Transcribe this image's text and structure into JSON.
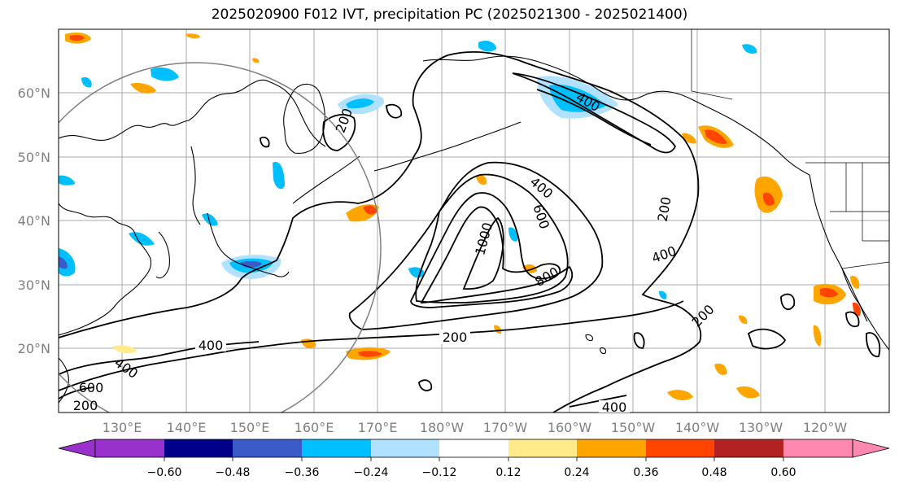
{
  "title": "2025020900 F012 IVT, precipitation PC (2025021300 - 2025021400)",
  "lat_labels": [
    "60°N",
    "50°N",
    "40°N",
    "30°N",
    "20°N"
  ],
  "lon_labels": [
    "130°E",
    "140°E",
    "150°E",
    "160°E",
    "170°E",
    "180°W",
    "170°W",
    "160°W",
    "150°W",
    "140°W",
    "130°W",
    "120°W"
  ],
  "contour_labels": [
    "200",
    "400",
    "600",
    "1000",
    "800",
    "400",
    "200",
    "200",
    "400",
    "400",
    "200",
    "400",
    "600",
    "200",
    "400"
  ],
  "colorbar": {
    "colors": [
      "#9932cc",
      "#00008b",
      "#3a5bc8",
      "#00bfff",
      "#b0e2ff",
      "#ffffff",
      "#ffeb8a",
      "#ffa500",
      "#ff4500",
      "#b22222",
      "#ff88b0"
    ],
    "ticks": [
      "−0.60",
      "−0.48",
      "−0.36",
      "−0.24",
      "−0.12",
      "0.12",
      "0.24",
      "0.36",
      "0.48",
      "0.60"
    ]
  },
  "colors": {
    "grid": "#a9a9a9",
    "coast": "#000000",
    "contour": "#000000",
    "circle": "#808080",
    "neg_light": "#b0e2ff",
    "neg_mid": "#00bfff",
    "neg_dark": "#3a5bc8",
    "pos_light": "#ffeb8a",
    "pos_mid": "#ffa500",
    "pos_dark": "#ff4500"
  }
}
